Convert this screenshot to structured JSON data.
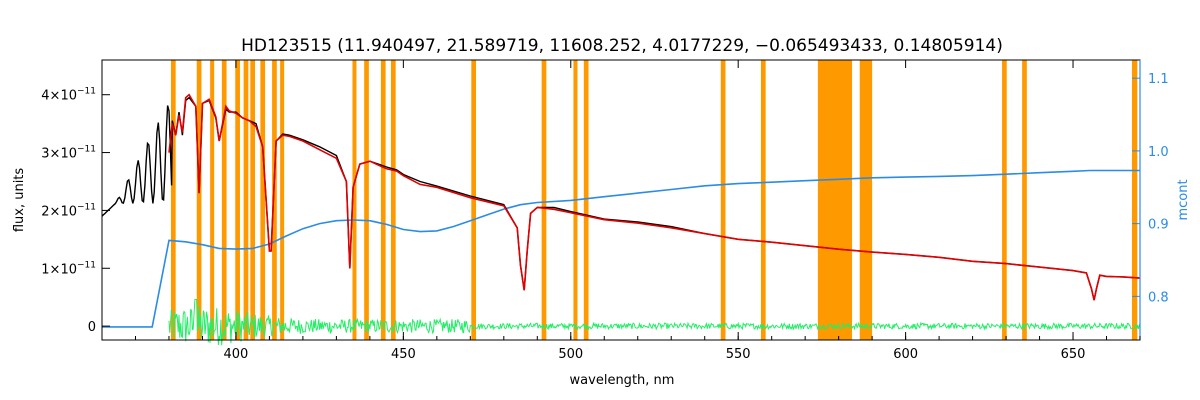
{
  "chart_data": {
    "type": "line",
    "title": "HD123515   (11.940497, 21.589719, 11608.252, 4.0177229, −0.065493433, 0.14805914)",
    "xlabel": "wavelength, nm",
    "ylabel": "flux, units",
    "ylabel_right": "mcont",
    "xlim": [
      360,
      670
    ],
    "ylim": [
      -2.4e-12,
      4.6e-11
    ],
    "ylim_right": [
      0.74,
      1.125
    ],
    "x_ticks": [
      400,
      450,
      500,
      550,
      600,
      650
    ],
    "y_ticks": [
      {
        "value": 0,
        "mantissa": "0",
        "exp": ""
      },
      {
        "value": 1e-11,
        "mantissa": "1×10",
        "exp": "−11"
      },
      {
        "value": 2e-11,
        "mantissa": "2×10",
        "exp": "−11"
      },
      {
        "value": 3e-11,
        "mantissa": "3×10",
        "exp": "−11"
      },
      {
        "value": 4e-11,
        "mantissa": "4×10",
        "exp": "−11"
      }
    ],
    "y_ticks_right": [
      0.8,
      0.9,
      1.0,
      1.1
    ],
    "y_ticks_right_labels": [
      "0.8",
      "0.9",
      "1.0",
      "1.1"
    ],
    "colors": {
      "observed": "#000000",
      "model": "#e00000",
      "residual": "#22ee66",
      "mcont": "#2b8ce6",
      "mask": "#ff9900",
      "highlight": "#ffd400"
    },
    "mask_bands": [
      [
        380.6,
        382.0
      ],
      [
        388.3,
        389.7
      ],
      [
        392.3,
        393.5
      ],
      [
        395.8,
        397.2
      ],
      [
        399.8,
        401.2
      ],
      [
        402.3,
        403.7
      ],
      [
        404.3,
        405.7
      ],
      [
        407.3,
        408.7
      ],
      [
        410.8,
        412.2
      ],
      [
        413.2,
        414.4
      ],
      [
        434.8,
        436.0
      ],
      [
        438.3,
        439.7
      ],
      [
        443.3,
        444.7
      ],
      [
        446.3,
        447.7
      ],
      [
        470.3,
        471.7
      ],
      [
        491.3,
        492.7
      ],
      [
        500.8,
        502.0
      ],
      [
        503.9,
        505.3
      ],
      [
        544.8,
        546.2
      ],
      [
        556.8,
        558.2
      ],
      [
        573.8,
        584.0
      ],
      [
        586.3,
        590.0
      ],
      [
        628.8,
        630.2
      ],
      [
        634.8,
        636.2
      ],
      [
        667.6,
        669.2
      ]
    ],
    "series": [
      {
        "role": "observed",
        "x": [
          360,
          365,
          370,
          372,
          374,
          376,
          378,
          380,
          381,
          382,
          383,
          384,
          385,
          386,
          388,
          389,
          390,
          392,
          394,
          395,
          397,
          398,
          400,
          402,
          404,
          406,
          408,
          410,
          410.5,
          412,
          414,
          416,
          420,
          425,
          430,
          433,
          434,
          435,
          437,
          440,
          445,
          448,
          450,
          455,
          460,
          470,
          480,
          484,
          485,
          486.1,
          487,
          488,
          490,
          495,
          500,
          510,
          520,
          530,
          540,
          550,
          560,
          570,
          580,
          590,
          600,
          610,
          620,
          630,
          640,
          650,
          654,
          655.5,
          656.3,
          657,
          658,
          660,
          665,
          670
        ],
        "y": [
          1.97e-11,
          1.9e-11,
          2.1e-11,
          2.25e-11,
          2.35e-11,
          2.5e-11,
          2.7e-11,
          3e-11,
          3.55e-11,
          3.3e-11,
          3.7e-11,
          3.3e-11,
          3.9e-11,
          3.95e-11,
          3.8e-11,
          2.3e-11,
          3.85e-11,
          3.9e-11,
          3.6e-11,
          3.2e-11,
          3.75e-11,
          3.7e-11,
          3.7e-11,
          3.6e-11,
          3.55e-11,
          3.5e-11,
          3.1e-11,
          1.3e-11,
          1.3e-11,
          3.2e-11,
          3.32e-11,
          3.3e-11,
          3.22e-11,
          3.1e-11,
          2.95e-11,
          2.5e-11,
          1e-11,
          2.4e-11,
          2.8e-11,
          2.85e-11,
          2.75e-11,
          2.7e-11,
          2.62e-11,
          2.5e-11,
          2.42e-11,
          2.25e-11,
          2.1e-11,
          1.7e-11,
          1.05e-11,
          6.2e-12,
          1.3e-11,
          1.95e-11,
          2.05e-11,
          2.05e-11,
          1.98e-11,
          1.85e-11,
          1.8e-11,
          1.72e-11,
          1.6e-11,
          1.5e-11,
          1.45e-11,
          1.39e-11,
          1.33e-11,
          1.28e-11,
          1.24e-11,
          1.19e-11,
          1.12e-11,
          1.08e-11,
          1.02e-11,
          9.6e-12,
          9.2e-12,
          6.5e-12,
          4.5e-12,
          6.5e-12,
          8.8e-12,
          8.6e-12,
          8.5e-12,
          8.3e-12
        ]
      },
      {
        "role": "model",
        "x": [
          380,
          381,
          382,
          383,
          384,
          385,
          386,
          388,
          389,
          390,
          392,
          394,
          395,
          397,
          398,
          400,
          402,
          404,
          406,
          408,
          410,
          410.5,
          412,
          414,
          416,
          420,
          425,
          430,
          433,
          434,
          435,
          437,
          440,
          445,
          448,
          450,
          455,
          460,
          470,
          480,
          484,
          485,
          486.1,
          487,
          488,
          490,
          495,
          500,
          510,
          520,
          530,
          540,
          550,
          560,
          570,
          580,
          590,
          600,
          610,
          620,
          630,
          640,
          650,
          654,
          655.5,
          656.3,
          657,
          658,
          660,
          665,
          670
        ],
        "y": [
          3e-11,
          3.5e-11,
          3.3e-11,
          3.65e-11,
          3.35e-11,
          3.95e-11,
          4e-11,
          3.8e-11,
          2.3e-11,
          3.85e-11,
          3.92e-11,
          3.62e-11,
          3.2e-11,
          3.8e-11,
          3.72e-11,
          3.68e-11,
          3.6e-11,
          3.55e-11,
          3.45e-11,
          3.1e-11,
          1.3e-11,
          1.3e-11,
          3.2e-11,
          3.3e-11,
          3.28e-11,
          3.2e-11,
          3.05e-11,
          2.9e-11,
          2.5e-11,
          1e-11,
          2.4e-11,
          2.8e-11,
          2.85e-11,
          2.72e-11,
          2.68e-11,
          2.6e-11,
          2.45e-11,
          2.4e-11,
          2.22e-11,
          2.08e-11,
          1.7e-11,
          1.05e-11,
          6.2e-12,
          1.3e-11,
          1.95e-11,
          2.05e-11,
          2.02e-11,
          1.96e-11,
          1.84e-11,
          1.78e-11,
          1.7e-11,
          1.6e-11,
          1.5e-11,
          1.45e-11,
          1.39e-11,
          1.33e-11,
          1.28e-11,
          1.24e-11,
          1.19e-11,
          1.12e-11,
          1.08e-11,
          1.02e-11,
          9.6e-12,
          9.2e-12,
          6.5e-12,
          4.5e-12,
          6.5e-12,
          8.8e-12,
          8.6e-12,
          8.5e-12,
          8.3e-12
        ]
      },
      {
        "role": "mcont",
        "x": [
          360,
          375,
          380,
          385,
          390,
          395,
          400,
          405,
          410,
          415,
          420,
          425,
          430,
          435,
          440,
          445,
          450,
          455,
          460,
          465,
          470,
          475,
          480,
          485,
          490,
          500,
          510,
          520,
          530,
          540,
          550,
          560,
          570,
          580,
          590,
          600,
          610,
          620,
          630,
          640,
          650,
          655,
          660,
          670
        ],
        "y": [
          0.758,
          0.758,
          0.877,
          0.875,
          0.871,
          0.866,
          0.865,
          0.866,
          0.872,
          0.883,
          0.893,
          0.9,
          0.904,
          0.905,
          0.904,
          0.899,
          0.892,
          0.889,
          0.89,
          0.896,
          0.904,
          0.912,
          0.92,
          0.926,
          0.929,
          0.932,
          0.937,
          0.942,
          0.947,
          0.952,
          0.955,
          0.957,
          0.959,
          0.961,
          0.963,
          0.964,
          0.965,
          0.966,
          0.968,
          0.97,
          0.972,
          0.973,
          0.973,
          0.973
        ]
      }
    ],
    "residual": {
      "x_range": [
        380,
        670
      ],
      "baseline": 0,
      "amplitude_near_blue": 6e-13,
      "amplitude_far": 2.5e-13,
      "peak_x": 388,
      "peak_y": 4.6e-12
    }
  }
}
